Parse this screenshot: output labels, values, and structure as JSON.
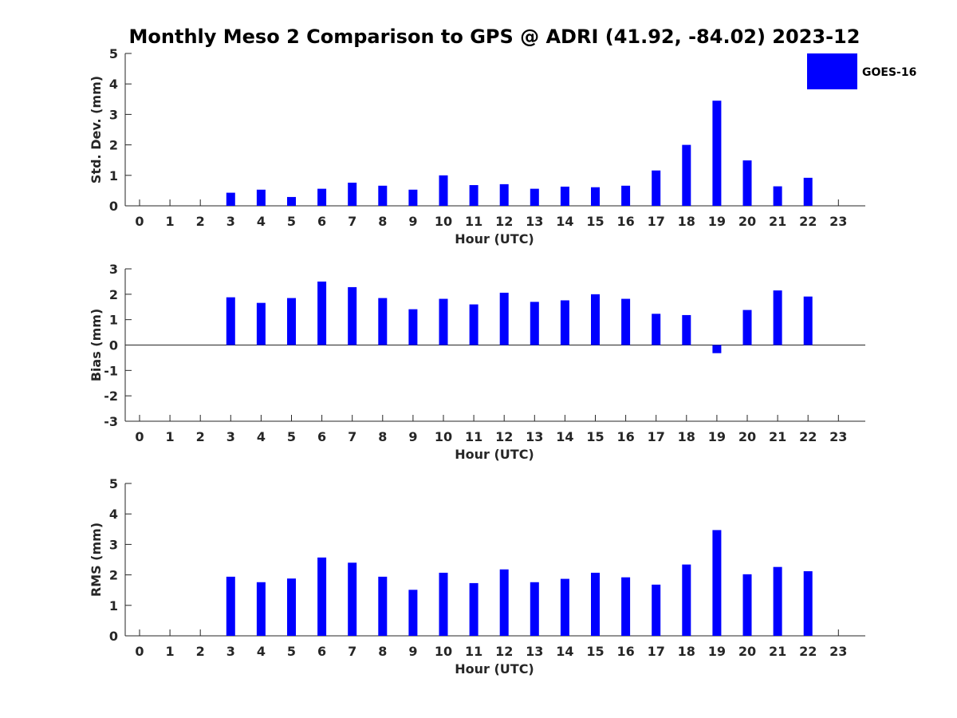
{
  "figure": {
    "title": "Monthly Meso 2 Comparison to GPS @ ADRI (41.92, -84.02) 2023-12"
  },
  "legend": {
    "label": "GOES-16",
    "color": "#0000ff"
  },
  "chart_data": [
    {
      "type": "bar",
      "ylabel": "Std. Dev. (mm)",
      "xlabel": "Hour (UTC)",
      "ylim": [
        0,
        5
      ],
      "yticks": [
        0,
        1,
        2,
        3,
        4,
        5
      ],
      "categories": [
        0,
        1,
        2,
        3,
        4,
        5,
        6,
        7,
        8,
        9,
        10,
        11,
        12,
        13,
        14,
        15,
        16,
        17,
        18,
        19,
        20,
        21,
        22,
        23
      ],
      "series": [
        {
          "name": "GOES-16",
          "values": [
            null,
            null,
            null,
            0.43,
            0.53,
            0.29,
            0.56,
            0.76,
            0.66,
            0.53,
            1.0,
            0.68,
            0.71,
            0.56,
            0.63,
            0.61,
            0.66,
            1.16,
            2.0,
            3.45,
            1.49,
            0.64,
            0.92,
            null
          ]
        }
      ],
      "grid": false
    },
    {
      "type": "bar",
      "ylabel": "Bias (mm)",
      "xlabel": "Hour (UTC)",
      "ylim": [
        -3,
        3
      ],
      "yticks": [
        -3,
        -2,
        -1,
        0,
        1,
        2,
        3
      ],
      "categories": [
        0,
        1,
        2,
        3,
        4,
        5,
        6,
        7,
        8,
        9,
        10,
        11,
        12,
        13,
        14,
        15,
        16,
        17,
        18,
        19,
        20,
        21,
        22,
        23
      ],
      "series": [
        {
          "name": "GOES-16",
          "values": [
            null,
            null,
            null,
            1.88,
            1.66,
            1.85,
            2.5,
            2.28,
            1.85,
            1.41,
            1.82,
            1.6,
            2.06,
            1.7,
            1.76,
            2.0,
            1.82,
            1.23,
            1.18,
            -0.32,
            1.38,
            2.15,
            1.91,
            null
          ]
        }
      ],
      "grid": false
    },
    {
      "type": "bar",
      "ylabel": "RMS (mm)",
      "xlabel": "Hour (UTC)",
      "ylim": [
        0,
        5
      ],
      "yticks": [
        0,
        1,
        2,
        3,
        4,
        5
      ],
      "categories": [
        0,
        1,
        2,
        3,
        4,
        5,
        6,
        7,
        8,
        9,
        10,
        11,
        12,
        13,
        14,
        15,
        16,
        17,
        18,
        19,
        20,
        21,
        22,
        23
      ],
      "series": [
        {
          "name": "GOES-16",
          "values": [
            null,
            null,
            null,
            1.94,
            1.76,
            1.88,
            2.57,
            2.4,
            1.94,
            1.51,
            2.07,
            1.73,
            2.18,
            1.76,
            1.87,
            2.07,
            1.92,
            1.68,
            2.34,
            3.47,
            2.02,
            2.26,
            2.12,
            null
          ]
        }
      ],
      "grid": false
    }
  ]
}
